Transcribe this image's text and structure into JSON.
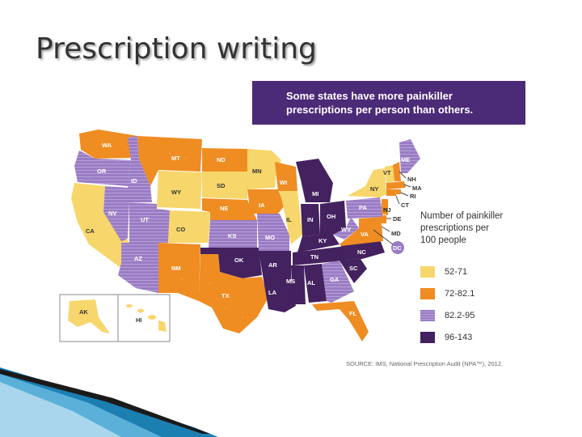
{
  "slide": {
    "title": "Prescription writing"
  },
  "banner": {
    "line1": "Some states have more painkiller",
    "line2": "prescriptions per person than others."
  },
  "legend": {
    "title_line1": "Number of painkiller",
    "title_line2": "prescriptions per",
    "title_line3": "100 people",
    "items": [
      {
        "label": "52-71",
        "color": "#f7d66b"
      },
      {
        "label": "72-82.1",
        "color": "#ef8c22"
      },
      {
        "label": "82.2-95",
        "color": "#9a7cc4"
      },
      {
        "label": "96-143",
        "color": "#44215f"
      }
    ]
  },
  "source": "SOURCE: IMS, National Prescription Audit (NPA™), 2012.",
  "states": {
    "WA": "WA",
    "OR": "OR",
    "CA": "CA",
    "ID": "ID",
    "NV": "NV",
    "MT": "MT",
    "WY": "WY",
    "UT": "UT",
    "AZ": "AZ",
    "CO": "CO",
    "NM": "NM",
    "ND": "ND",
    "SD": "SD",
    "NE": "NE",
    "KS": "KS",
    "OK": "OK",
    "TX": "TX",
    "MN": "MN",
    "IA": "IA",
    "MO": "MO",
    "AR": "AR",
    "LA": "LA",
    "WI": "WI",
    "IL": "IL",
    "MI": "MI",
    "IN": "IN",
    "OH": "OH",
    "KY": "KY",
    "TN": "TN",
    "MS": "MS",
    "AL": "AL",
    "GA": "GA",
    "FL": "FL",
    "SC": "SC",
    "NC": "NC",
    "VA": "VA",
    "WV": "WV",
    "PA": "PA",
    "NY": "NY",
    "VT": "VT",
    "ME": "ME",
    "NH": "NH",
    "MA": "MA",
    "RI": "RI",
    "CT": "CT",
    "NJ": "NJ",
    "DE": "DE",
    "MD": "MD",
    "DC": "DC",
    "AK": "AK",
    "HI": "HI"
  }
}
